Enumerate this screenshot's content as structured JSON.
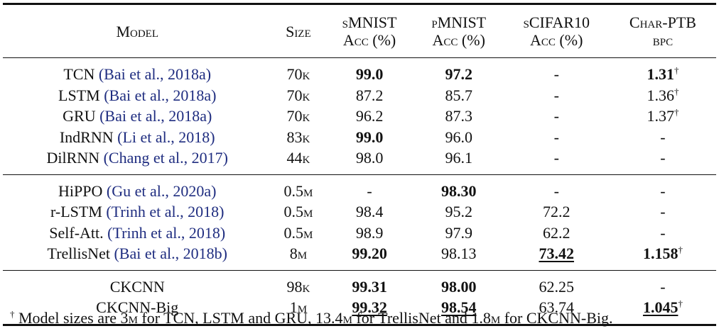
{
  "table": {
    "header": [
      {
        "lines": [
          "Model"
        ]
      },
      {
        "lines": [
          "Size"
        ]
      },
      {
        "lines": [
          "sMNIST",
          "Acc (%)"
        ]
      },
      {
        "lines": [
          "pMNIST",
          "Acc (%)"
        ]
      },
      {
        "lines": [
          "sCIFAR10",
          "Acc (%)"
        ]
      },
      {
        "lines": [
          "Char-PTB",
          "bpc"
        ]
      }
    ],
    "groups": [
      [
        {
          "model": "TCN",
          "cite": "(Bai et al., 2018a)",
          "size": "70k",
          "cells": [
            {
              "text": "99.0",
              "bold": true
            },
            {
              "text": "97.2",
              "bold": true
            },
            {
              "text": "-"
            },
            {
              "text": "1.31",
              "bold": true,
              "sup": "†"
            }
          ]
        },
        {
          "model": "LSTM",
          "cite": "(Bai et al., 2018a)",
          "size": "70k",
          "cells": [
            {
              "text": "87.2"
            },
            {
              "text": "85.7"
            },
            {
              "text": "-"
            },
            {
              "text": "1.36",
              "sup": "†"
            }
          ]
        },
        {
          "model": "GRU",
          "cite": "(Bai et al., 2018a)",
          "size": "70k",
          "cells": [
            {
              "text": "96.2"
            },
            {
              "text": "87.3"
            },
            {
              "text": "-"
            },
            {
              "text": "1.37",
              "sup": "†"
            }
          ]
        },
        {
          "model": "IndRNN",
          "cite": "(Li et al., 2018)",
          "size": "83k",
          "cells": [
            {
              "text": "99.0",
              "bold": true
            },
            {
              "text": "96.0"
            },
            {
              "text": "-"
            },
            {
              "text": "-"
            }
          ]
        },
        {
          "model": "DilRNN",
          "cite": "(Chang et al., 2017)",
          "size": "44k",
          "cells": [
            {
              "text": "98.0"
            },
            {
              "text": "96.1"
            },
            {
              "text": "-"
            },
            {
              "text": "-"
            }
          ]
        }
      ],
      [
        {
          "model": "HiPPO",
          "cite": "(Gu et al., 2020a)",
          "size": "0.5m",
          "cells": [
            {
              "text": "-"
            },
            {
              "text": "98.30",
              "bold": true
            },
            {
              "text": "-"
            },
            {
              "text": "-"
            }
          ]
        },
        {
          "model": "r-LSTM",
          "cite": "(Trinh et al., 2018)",
          "size": "0.5m",
          "cells": [
            {
              "text": "98.4"
            },
            {
              "text": "95.2"
            },
            {
              "text": "72.2"
            },
            {
              "text": "-"
            }
          ]
        },
        {
          "model": "Self-Att.",
          "cite": "(Trinh et al., 2018)",
          "size": "0.5m",
          "cells": [
            {
              "text": "98.9"
            },
            {
              "text": "97.9"
            },
            {
              "text": "62.2"
            },
            {
              "text": "-"
            }
          ]
        },
        {
          "model": "TrellisNet",
          "cite": "(Bai et al., 2018b)",
          "size": "8m",
          "cells": [
            {
              "text": "99.20",
              "bold": true
            },
            {
              "text": "98.13"
            },
            {
              "text": "73.42",
              "bold": true,
              "underline": true
            },
            {
              "text": "1.158",
              "bold": true,
              "sup": "†"
            }
          ]
        }
      ],
      [
        {
          "model": "CKCNN",
          "size": "98k",
          "cells": [
            {
              "text": "99.31",
              "bold": true
            },
            {
              "text": "98.00",
              "bold": true
            },
            {
              "text": "62.25"
            },
            {
              "text": "-"
            }
          ]
        },
        {
          "model": "CKCNN-Big",
          "size": "1m",
          "cells": [
            {
              "text": "99.32",
              "bold": true,
              "underline": true
            },
            {
              "text": "98.54",
              "bold": true,
              "underline": true
            },
            {
              "text": "63.74"
            },
            {
              "text": "1.045",
              "bold": true,
              "underline": true,
              "sup": "†"
            }
          ]
        }
      ]
    ],
    "footnote": [
      {
        "text": "†",
        "sup": true
      },
      {
        "text": " Model sizes are 3"
      },
      {
        "text": "m",
        "sc": true
      },
      {
        "text": " for TCN, LSTM and GRU, 13.4"
      },
      {
        "text": "m",
        "sc": true
      },
      {
        "text": " for TrellisNet and 1.8"
      },
      {
        "text": "m",
        "sc": true
      },
      {
        "text": " for CKCNN-Big."
      }
    ]
  }
}
